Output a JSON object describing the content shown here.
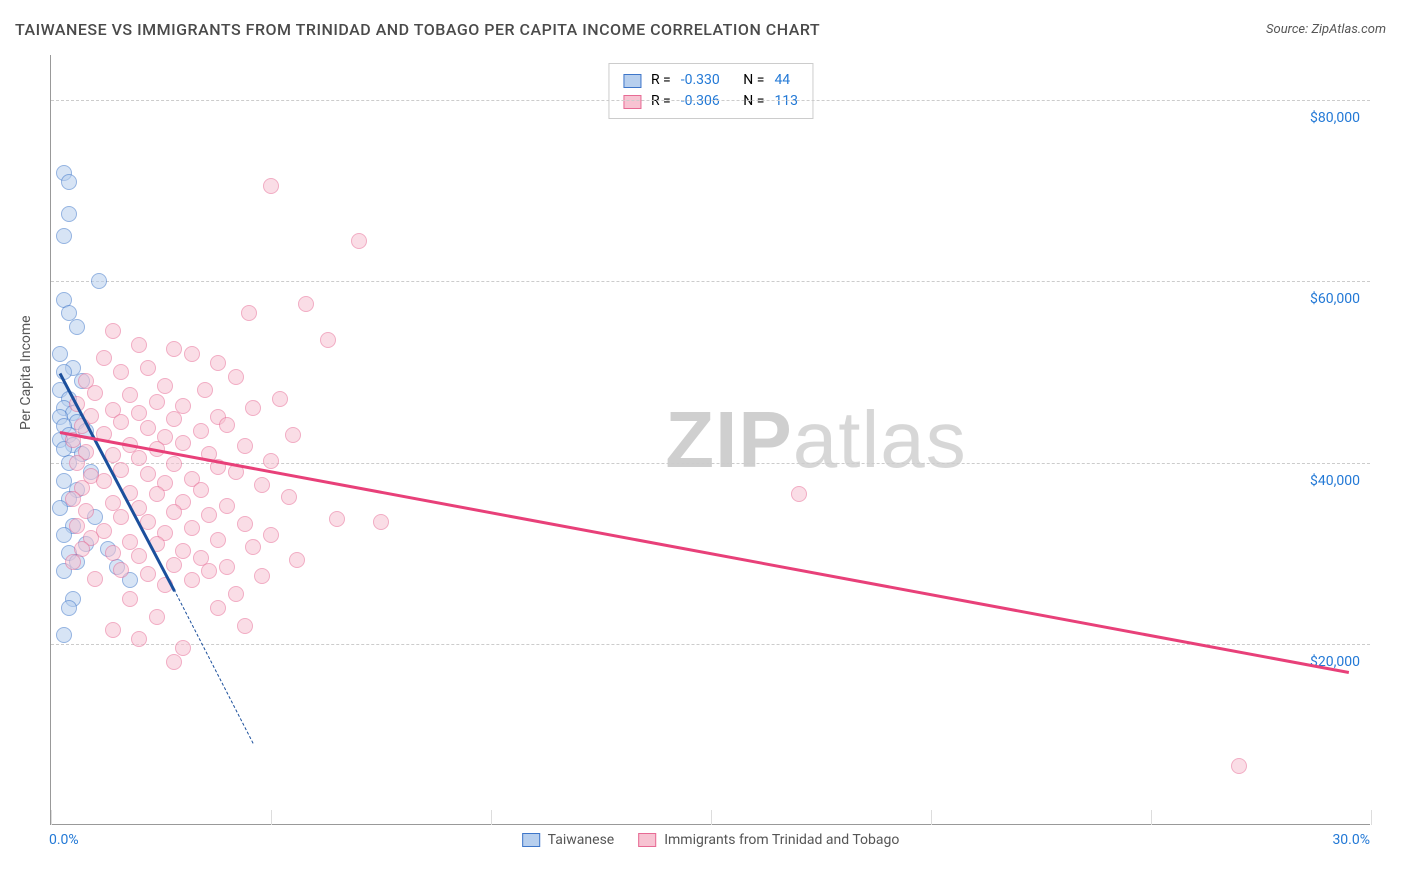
{
  "title": "TAIWANESE VS IMMIGRANTS FROM TRINIDAD AND TOBAGO PER CAPITA INCOME CORRELATION CHART",
  "source_label": "Source: ",
  "source_name": "ZipAtlas.com",
  "watermark_bold": "ZIP",
  "watermark_rest": "atlas",
  "ylabel": "Per Capita Income",
  "chart": {
    "type": "scatter",
    "xlim": [
      0,
      30
    ],
    "ylim": [
      0,
      85000
    ],
    "x_tick_start": "0.0%",
    "x_tick_end": "30.0%",
    "y_gridlines": [
      20000,
      40000,
      60000,
      80000
    ],
    "y_tick_labels": [
      "$20,000",
      "$40,000",
      "$60,000",
      "$80,000"
    ],
    "x_minor_ticks": [
      0,
      5,
      10,
      15,
      20,
      25,
      30
    ],
    "background_color": "#ffffff",
    "grid_color": "#cccccc",
    "point_radius": 8,
    "point_opacity": 0.55,
    "series": [
      {
        "name": "Taiwanese",
        "color_fill": "#b7cfee",
        "color_stroke": "#3e76c9",
        "R": "-0.330",
        "N": "44",
        "trend": {
          "x1": 0.2,
          "y1": 50000,
          "x2": 2.8,
          "y2": 26000,
          "color": "#1b4f9c",
          "dash_x2": 4.6,
          "dash_y2": 9000
        },
        "points": [
          [
            0.3,
            72000
          ],
          [
            0.4,
            71000
          ],
          [
            0.4,
            67500
          ],
          [
            0.3,
            65000
          ],
          [
            1.1,
            60000
          ],
          [
            0.3,
            58000
          ],
          [
            0.4,
            56500
          ],
          [
            0.6,
            55000
          ],
          [
            0.2,
            52000
          ],
          [
            0.5,
            50500
          ],
          [
            0.3,
            50000
          ],
          [
            0.7,
            49000
          ],
          [
            0.2,
            48000
          ],
          [
            0.4,
            47000
          ],
          [
            0.3,
            46000
          ],
          [
            0.5,
            45500
          ],
          [
            0.2,
            45000
          ],
          [
            0.6,
            44500
          ],
          [
            0.3,
            44000
          ],
          [
            0.8,
            43500
          ],
          [
            0.4,
            43000
          ],
          [
            0.2,
            42500
          ],
          [
            0.5,
            42000
          ],
          [
            0.3,
            41500
          ],
          [
            0.7,
            41000
          ],
          [
            0.4,
            40000
          ],
          [
            0.9,
            39000
          ],
          [
            0.3,
            38000
          ],
          [
            0.6,
            37000
          ],
          [
            0.4,
            36000
          ],
          [
            0.2,
            35000
          ],
          [
            1.0,
            34000
          ],
          [
            0.5,
            33000
          ],
          [
            0.3,
            32000
          ],
          [
            0.8,
            31000
          ],
          [
            1.3,
            30500
          ],
          [
            0.4,
            30000
          ],
          [
            0.6,
            29000
          ],
          [
            1.5,
            28500
          ],
          [
            0.3,
            28000
          ],
          [
            1.8,
            27000
          ],
          [
            0.5,
            25000
          ],
          [
            0.4,
            24000
          ],
          [
            0.3,
            21000
          ]
        ]
      },
      {
        "name": "Immigrants from Trinidad and Tobago",
        "color_fill": "#f7c3d2",
        "color_stroke": "#e76a94",
        "R": "-0.306",
        "N": "113",
        "trend": {
          "x1": 0.2,
          "y1": 43500,
          "x2": 29.5,
          "y2": 17000,
          "color": "#e84079"
        },
        "points": [
          [
            5.0,
            70500
          ],
          [
            7.0,
            64500
          ],
          [
            5.8,
            57500
          ],
          [
            4.5,
            56500
          ],
          [
            1.4,
            54500
          ],
          [
            6.3,
            53500
          ],
          [
            2.0,
            53000
          ],
          [
            2.8,
            52500
          ],
          [
            3.2,
            52000
          ],
          [
            1.2,
            51500
          ],
          [
            3.8,
            51000
          ],
          [
            2.2,
            50500
          ],
          [
            1.6,
            50000
          ],
          [
            4.2,
            49500
          ],
          [
            0.8,
            49000
          ],
          [
            2.6,
            48500
          ],
          [
            3.5,
            48000
          ],
          [
            1.0,
            47700
          ],
          [
            1.8,
            47500
          ],
          [
            5.2,
            47000
          ],
          [
            2.4,
            46700
          ],
          [
            0.6,
            46500
          ],
          [
            3.0,
            46200
          ],
          [
            4.6,
            46000
          ],
          [
            1.4,
            45800
          ],
          [
            2.0,
            45500
          ],
          [
            0.9,
            45200
          ],
          [
            3.8,
            45000
          ],
          [
            2.8,
            44800
          ],
          [
            1.6,
            44500
          ],
          [
            4.0,
            44200
          ],
          [
            0.7,
            44000
          ],
          [
            2.2,
            43800
          ],
          [
            3.4,
            43500
          ],
          [
            1.2,
            43200
          ],
          [
            5.5,
            43000
          ],
          [
            2.6,
            42800
          ],
          [
            0.5,
            42500
          ],
          [
            3.0,
            42200
          ],
          [
            1.8,
            42000
          ],
          [
            4.4,
            41800
          ],
          [
            2.4,
            41500
          ],
          [
            0.8,
            41200
          ],
          [
            3.6,
            41000
          ],
          [
            1.4,
            40800
          ],
          [
            2.0,
            40500
          ],
          [
            5.0,
            40200
          ],
          [
            0.6,
            40000
          ],
          [
            2.8,
            39800
          ],
          [
            3.8,
            39500
          ],
          [
            1.6,
            39200
          ],
          [
            4.2,
            39000
          ],
          [
            2.2,
            38800
          ],
          [
            0.9,
            38500
          ],
          [
            3.2,
            38200
          ],
          [
            1.2,
            38000
          ],
          [
            2.6,
            37700
          ],
          [
            4.8,
            37500
          ],
          [
            0.7,
            37200
          ],
          [
            3.4,
            37000
          ],
          [
            1.8,
            36700
          ],
          [
            2.4,
            36500
          ],
          [
            5.4,
            36200
          ],
          [
            0.5,
            36000
          ],
          [
            3.0,
            35700
          ],
          [
            1.4,
            35500
          ],
          [
            4.0,
            35200
          ],
          [
            2.0,
            35000
          ],
          [
            0.8,
            34700
          ],
          [
            2.8,
            34500
          ],
          [
            3.6,
            34200
          ],
          [
            17.0,
            36500
          ],
          [
            1.6,
            34000
          ],
          [
            6.5,
            33800
          ],
          [
            2.2,
            33500
          ],
          [
            4.4,
            33200
          ],
          [
            0.6,
            33000
          ],
          [
            3.2,
            32800
          ],
          [
            7.5,
            33500
          ],
          [
            1.2,
            32500
          ],
          [
            2.6,
            32200
          ],
          [
            5.0,
            32000
          ],
          [
            0.9,
            31700
          ],
          [
            3.8,
            31500
          ],
          [
            1.8,
            31200
          ],
          [
            2.4,
            31000
          ],
          [
            4.6,
            30700
          ],
          [
            0.7,
            30500
          ],
          [
            3.0,
            30200
          ],
          [
            1.4,
            30000
          ],
          [
            2.0,
            29700
          ],
          [
            3.4,
            29500
          ],
          [
            5.6,
            29200
          ],
          [
            0.5,
            29000
          ],
          [
            2.8,
            28700
          ],
          [
            4.0,
            28500
          ],
          [
            1.6,
            28200
          ],
          [
            3.6,
            28000
          ],
          [
            2.2,
            27700
          ],
          [
            4.8,
            27500
          ],
          [
            1.0,
            27200
          ],
          [
            3.2,
            27000
          ],
          [
            2.6,
            26500
          ],
          [
            4.2,
            25500
          ],
          [
            1.8,
            25000
          ],
          [
            3.8,
            24000
          ],
          [
            2.4,
            23000
          ],
          [
            4.4,
            22000
          ],
          [
            2.8,
            18000
          ],
          [
            27.0,
            6500
          ],
          [
            2.0,
            20500
          ],
          [
            3.0,
            19500
          ],
          [
            1.4,
            21500
          ]
        ]
      }
    ]
  },
  "legend_top": {
    "R_label": "R =",
    "N_label": "N ="
  },
  "ui_text": {
    "bottom_legend_labels": [
      "Taiwanese",
      "Immigrants from Trinidad and Tobago"
    ]
  }
}
